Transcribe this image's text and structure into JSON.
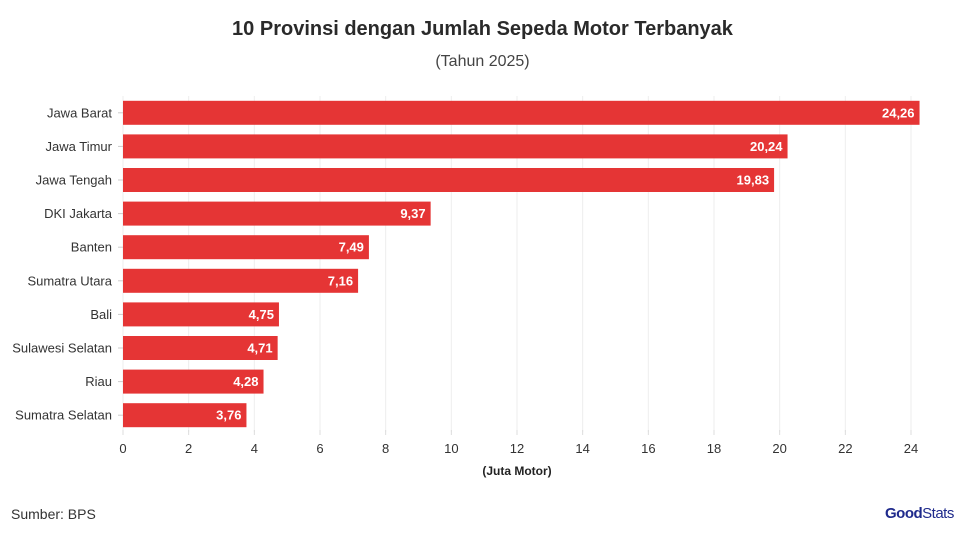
{
  "chart_data": {
    "type": "bar",
    "orientation": "horizontal",
    "title": "10 Provinsi dengan Jumlah Sepeda Motor Terbanyak",
    "subtitle": "(Tahun 2025)",
    "xlabel": "(Juta Motor)",
    "ylabel": "",
    "categories": [
      "Jawa Barat",
      "Jawa Timur",
      "Jawa Tengah",
      "DKI Jakarta",
      "Banten",
      "Sumatra Utara",
      "Bali",
      "Sulawesi Selatan",
      "Riau",
      "Sumatra Selatan"
    ],
    "values": [
      24.26,
      20.24,
      19.83,
      9.37,
      7.49,
      7.16,
      4.75,
      4.71,
      4.28,
      3.76
    ],
    "data_labels": [
      "24,26",
      "20,24",
      "19,83",
      "9,37",
      "7,49",
      "7,16",
      "4,75",
      "4,71",
      "4,28",
      "3,76"
    ],
    "xlim": [
      0,
      24
    ],
    "xticks": [
      0,
      2,
      4,
      6,
      8,
      10,
      12,
      14,
      16,
      18,
      20,
      22,
      24
    ],
    "grid": true,
    "bar_color": "#e53535"
  },
  "source": "Sumber: BPS",
  "logo": {
    "part1": "Good",
    "part2": "Stats"
  }
}
